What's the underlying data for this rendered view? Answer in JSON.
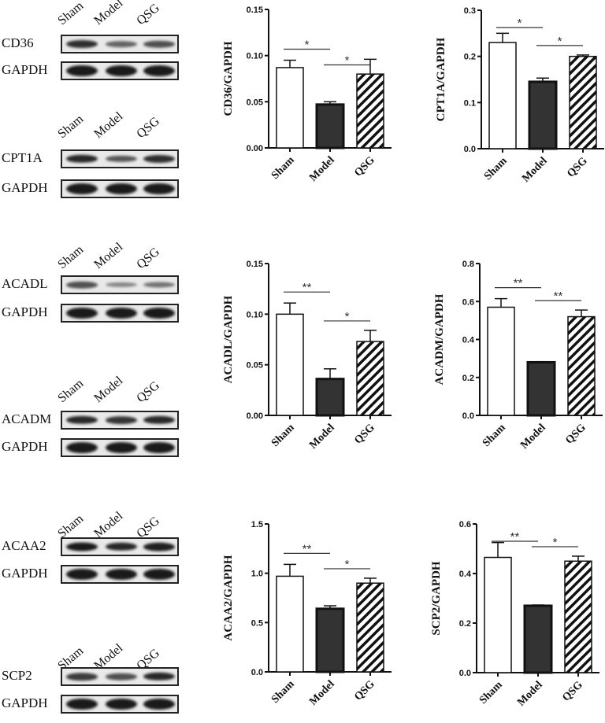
{
  "groups": [
    "Sham",
    "Model",
    "QSG"
  ],
  "blots": [
    {
      "target": "CD36",
      "control": "GAPDH",
      "target_intensity": [
        0.85,
        0.45,
        0.6
      ],
      "control_intensity": [
        1,
        1,
        1
      ]
    },
    {
      "target": "CPT1A",
      "control": "GAPDH",
      "target_intensity": [
        0.9,
        0.55,
        0.85
      ],
      "control_intensity": [
        1,
        1,
        1
      ]
    },
    {
      "target": "ACADL",
      "control": "GAPDH",
      "target_intensity": [
        0.6,
        0.2,
        0.35
      ],
      "control_intensity": [
        1,
        1,
        1
      ]
    },
    {
      "target": "ACADM",
      "control": "GAPDH",
      "target_intensity": [
        0.9,
        0.8,
        0.9
      ],
      "control_intensity": [
        1,
        1,
        1
      ]
    },
    {
      "target": "ACAA2",
      "control": "GAPDH",
      "target_intensity": [
        1,
        0.9,
        0.95
      ],
      "control_intensity": [
        1,
        1,
        1
      ]
    },
    {
      "target": "SCP2",
      "control": "GAPDH",
      "target_intensity": [
        0.75,
        0.6,
        0.9
      ],
      "control_intensity": [
        1,
        1,
        1
      ]
    }
  ],
  "colors": {
    "sham": "#ffffff",
    "model": "#333333",
    "qsg_hatch": "#111111",
    "axis": "#111111"
  },
  "chart_data": [
    {
      "type": "bar",
      "title": "",
      "xlabel": "",
      "ylabel": "CD36/GAPDH",
      "categories": [
        "Sham",
        "Model",
        "QSG"
      ],
      "values": [
        0.087,
        0.047,
        0.08
      ],
      "errors": [
        0.008,
        0.003,
        0.016
      ],
      "ylim": [
        0,
        0.15
      ],
      "yticks": [
        "0.00",
        "0.05",
        "0.10",
        "0.15"
      ],
      "significance": [
        {
          "from": "Sham",
          "to": "Model",
          "label": "*"
        },
        {
          "from": "Model",
          "to": "QSG",
          "label": "*"
        }
      ]
    },
    {
      "type": "bar",
      "title": "",
      "xlabel": "",
      "ylabel": "CPT1A/GAPDH",
      "categories": [
        "Sham",
        "Model",
        "QSG"
      ],
      "values": [
        0.23,
        0.145,
        0.2
      ],
      "errors": [
        0.02,
        0.008,
        0.003
      ],
      "ylim": [
        0,
        0.3
      ],
      "yticks": [
        "0.0",
        "0.1",
        "0.2",
        "0.3"
      ],
      "significance": [
        {
          "from": "Sham",
          "to": "Model",
          "label": "*"
        },
        {
          "from": "Model",
          "to": "QSG",
          "label": "*"
        }
      ]
    },
    {
      "type": "bar",
      "title": "",
      "xlabel": "",
      "ylabel": "ACADL/GAPDH",
      "categories": [
        "Sham",
        "Model",
        "QSG"
      ],
      "values": [
        0.1,
        0.036,
        0.073
      ],
      "errors": [
        0.011,
        0.01,
        0.011
      ],
      "ylim": [
        0,
        0.15
      ],
      "yticks": [
        "0.00",
        "0.05",
        "0.10",
        "0.15"
      ],
      "significance": [
        {
          "from": "Sham",
          "to": "Model",
          "label": "**"
        },
        {
          "from": "Model",
          "to": "QSG",
          "label": "*"
        }
      ]
    },
    {
      "type": "bar",
      "title": "",
      "xlabel": "",
      "ylabel": "ACADM/GAPDH",
      "categories": [
        "Sham",
        "Model",
        "QSG"
      ],
      "values": [
        0.57,
        0.28,
        0.52
      ],
      "errors": [
        0.045,
        0.003,
        0.035
      ],
      "ylim": [
        0,
        0.8
      ],
      "yticks": [
        "0.0",
        "0.2",
        "0.4",
        "0.6",
        "0.8"
      ],
      "significance": [
        {
          "from": "Sham",
          "to": "Model",
          "label": "**"
        },
        {
          "from": "Model",
          "to": "QSG",
          "label": "**"
        }
      ]
    },
    {
      "type": "bar",
      "title": "",
      "xlabel": "",
      "ylabel": "ACAA2/GAPDH",
      "categories": [
        "Sham",
        "Model",
        "QSG"
      ],
      "values": [
        0.97,
        0.64,
        0.9
      ],
      "errors": [
        0.12,
        0.03,
        0.05
      ],
      "ylim": [
        0,
        1.5
      ],
      "yticks": [
        "0.0",
        "0.5",
        "1.0",
        "1.5"
      ],
      "significance": [
        {
          "from": "Sham",
          "to": "Model",
          "label": "**"
        },
        {
          "from": "Model",
          "to": "QSG",
          "label": "*"
        }
      ]
    },
    {
      "type": "bar",
      "title": "",
      "xlabel": "",
      "ylabel": "SCP2/GAPDH",
      "categories": [
        "Sham",
        "Model",
        "QSG"
      ],
      "values": [
        0.465,
        0.27,
        0.45
      ],
      "errors": [
        0.06,
        0.003,
        0.02
      ],
      "ylim": [
        0,
        0.6
      ],
      "yticks": [
        "0.0",
        "0.2",
        "0.4",
        "0.6"
      ],
      "significance": [
        {
          "from": "Sham",
          "to": "Model",
          "label": "**"
        },
        {
          "from": "Model",
          "to": "QSG",
          "label": "*"
        }
      ]
    }
  ]
}
